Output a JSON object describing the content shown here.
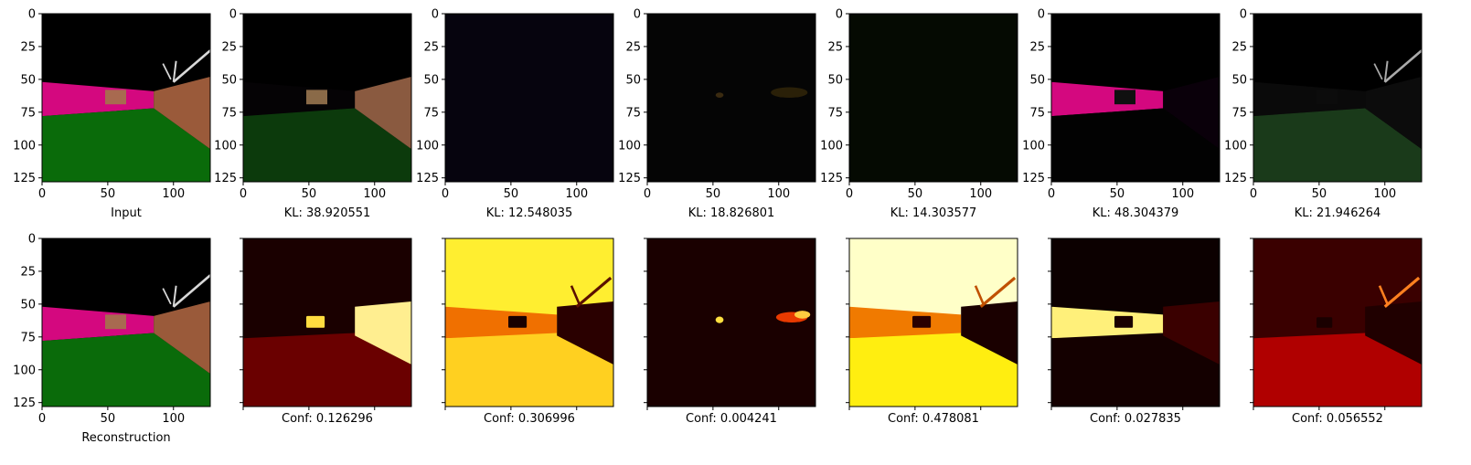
{
  "chart_data": {
    "type": "image-grid",
    "rows": 2,
    "cols": 7,
    "image_size": [
      128,
      128
    ],
    "xlim": [
      0,
      128
    ],
    "ylim": [
      128,
      0
    ],
    "xticks": [
      0,
      50,
      100
    ],
    "yticks": [
      0,
      25,
      50,
      75,
      100,
      125
    ],
    "top_row": {
      "panels": [
        {
          "caption": "Input",
          "kind": "scene"
        },
        {
          "caption": "KL: 38.920551",
          "kind": "latent-1"
        },
        {
          "caption": "KL: 12.548035",
          "kind": "latent-2"
        },
        {
          "caption": "KL: 18.826801",
          "kind": "latent-3"
        },
        {
          "caption": "KL: 14.303577",
          "kind": "latent-4"
        },
        {
          "caption": "KL: 48.304379",
          "kind": "latent-5"
        },
        {
          "caption": "KL: 21.946264",
          "kind": "latent-6"
        }
      ]
    },
    "bottom_row": {
      "panels": [
        {
          "caption": "Reconstruction",
          "kind": "scene"
        },
        {
          "caption": "Conf: 0.126296",
          "kind": "conf-1"
        },
        {
          "caption": "Conf: 0.306996",
          "kind": "conf-2"
        },
        {
          "caption": "Conf: 0.004241",
          "kind": "conf-3"
        },
        {
          "caption": "Conf: 0.478081",
          "kind": "conf-4"
        },
        {
          "caption": "Conf: 0.027835",
          "kind": "conf-5"
        },
        {
          "caption": "Conf: 0.056552",
          "kind": "conf-6"
        }
      ]
    }
  },
  "colors": {
    "magenta": "#d4087f",
    "green": "#0a6b0a",
    "brown": "#9a5a3a",
    "hot_dark": "#1a0000",
    "hot_red": "#b00000",
    "hot_orange": "#f07000",
    "hot_yellow": "#ffee10",
    "hot_white": "#ffffc8"
  }
}
